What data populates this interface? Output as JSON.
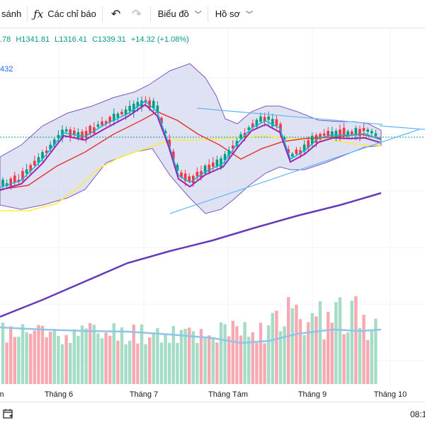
{
  "toolbar": {
    "compare_label": "sánh",
    "indicators_label": "Các chỉ báo",
    "chart_label": "Biểu đồ",
    "profile_label": "Hồ sơ"
  },
  "legend": {
    "partial": ".78",
    "high": "H1341.81",
    "low": "L1316.41",
    "close": "C1339.31",
    "change": "+14.32 (+1.08%)",
    "indicator_partial": "432",
    "color": "#089981"
  },
  "time_axis": {
    "months": [
      "m",
      "Tháng 6",
      "Tháng 7",
      "Tháng Tám",
      "Tháng 9",
      "Tháng 10"
    ]
  },
  "status_bar": {
    "time": "08:1"
  },
  "chart_data": {
    "type": "candlestick",
    "title": "",
    "series": [
      {
        "name": "price",
        "ohlc_last": {
          "high": 1341.81,
          "low": 1316.41,
          "close": 1339.31,
          "change": 14.32,
          "change_pct": 1.08
        }
      }
    ],
    "x_ticks": [
      "Tháng 6",
      "Tháng 7",
      "Tháng Tám",
      "Tháng 9",
      "Tháng 10"
    ],
    "overlays": [
      "bollinger-bands",
      "moving-averages",
      "trendlines",
      "volume"
    ],
    "colors": {
      "up": "#089981",
      "down": "#f23645",
      "band_fill": "#c5cae9",
      "band_line": "#7e57c2",
      "ma_fast": "#00bcd4",
      "ma_mid": "#9c27b0",
      "ma_slow": "#e53935",
      "ma_long": "#ffeb3b",
      "ma_200": "#673ab7",
      "trendline": "#64b5f6"
    }
  }
}
